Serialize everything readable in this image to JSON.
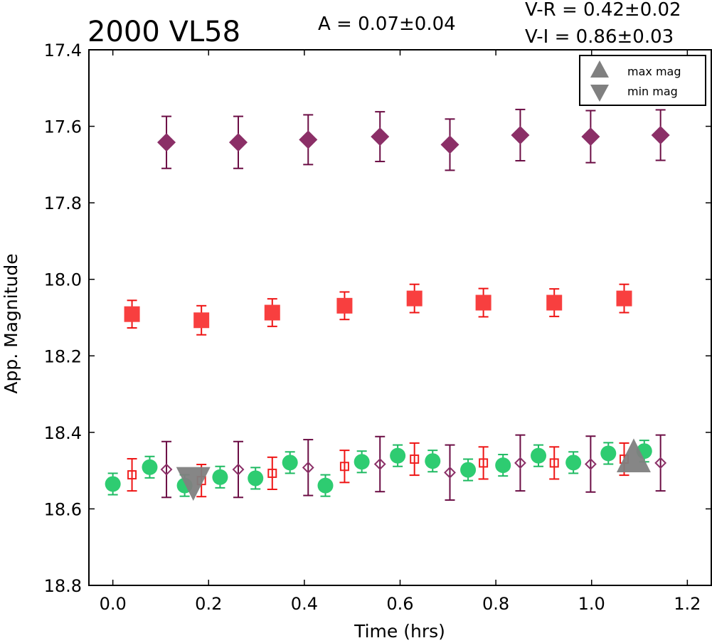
{
  "chart_data": {
    "type": "scatter",
    "title": "2000 VL58",
    "header": {
      "amplitude": "A  = 0.07±0.04",
      "v_r": "V-R = 0.42±0.02",
      "v_i": "V-I  = 0.86±0.03"
    },
    "xlabel": "Time (hrs)",
    "ylabel": "App. Magnitude",
    "xlim": [
      -0.05,
      1.25
    ],
    "ylim": [
      17.4,
      18.8
    ],
    "y_inverted": true,
    "xticks": [
      "0.0",
      "0.2",
      "0.4",
      "0.6",
      "0.8",
      "1.0",
      "1.2"
    ],
    "yticks": [
      "17.4",
      "17.6",
      "17.8",
      "18.0",
      "18.2",
      "18.4",
      "18.6",
      "18.8"
    ],
    "grid": false,
    "legend": {
      "placement": "top-right",
      "entries": [
        {
          "label": "max mag",
          "marker": "triangle-up",
          "color": "#808080"
        },
        {
          "label": "min mag",
          "marker": "triangle-down",
          "color": "#808080"
        }
      ]
    },
    "series": [
      {
        "marker": "diamond-filled",
        "color": "#8b2f67",
        "errcolor": "#6b0d44",
        "x": [
          0.112,
          0.262,
          0.408,
          0.558,
          0.704,
          0.851,
          0.998,
          1.144
        ],
        "y": [
          17.642,
          17.642,
          17.635,
          17.627,
          17.648,
          17.623,
          17.627,
          17.623
        ],
        "err": [
          0.068,
          0.068,
          0.065,
          0.065,
          0.067,
          0.067,
          0.068,
          0.066
        ]
      },
      {
        "marker": "square-filled",
        "color": "#f83f3f",
        "errcolor": "#ee1414",
        "x": [
          0.04,
          0.185,
          0.333,
          0.484,
          0.63,
          0.774,
          0.922,
          1.068
        ],
        "y": [
          18.091,
          18.107,
          18.087,
          18.069,
          18.05,
          18.061,
          18.061,
          18.05
        ],
        "err": [
          0.036,
          0.038,
          0.036,
          0.036,
          0.037,
          0.037,
          0.036,
          0.037
        ]
      },
      {
        "marker": "circle-filled",
        "color": "#2ecc71",
        "errcolor": "#1fba62",
        "x": [
          0.0,
          0.077,
          0.15,
          0.224,
          0.298,
          0.37,
          0.444,
          0.52,
          0.595,
          0.668,
          0.742,
          0.815,
          0.889,
          0.962,
          1.035,
          1.11
        ],
        "y": [
          18.535,
          18.491,
          18.539,
          18.517,
          18.52,
          18.479,
          18.539,
          18.477,
          18.461,
          18.475,
          18.498,
          18.486,
          18.461,
          18.479,
          18.455,
          18.449
        ],
        "err": [
          0.028,
          0.028,
          0.028,
          0.028,
          0.028,
          0.028,
          0.028,
          0.028,
          0.028,
          0.028,
          0.028,
          0.028,
          0.028,
          0.028,
          0.028,
          0.028
        ]
      },
      {
        "marker": "square-open",
        "color": "#f02020",
        "errcolor": "#ee1414",
        "x": [
          0.04,
          0.185,
          0.333,
          0.484,
          0.63,
          0.774,
          0.922,
          1.068
        ],
        "y": [
          18.511,
          18.526,
          18.507,
          18.489,
          18.47,
          18.48,
          18.48,
          18.47
        ],
        "err": [
          0.042,
          0.042,
          0.042,
          0.042,
          0.042,
          0.042,
          0.042,
          0.042
        ]
      },
      {
        "marker": "diamond-open",
        "color": "#8b2f67",
        "errcolor": "#6b0d44",
        "x": [
          0.112,
          0.262,
          0.408,
          0.558,
          0.704,
          0.851,
          0.998,
          1.144
        ],
        "y": [
          18.497,
          18.497,
          18.492,
          18.483,
          18.505,
          18.48,
          18.483,
          18.48
        ],
        "err": [
          0.073,
          0.073,
          0.073,
          0.072,
          0.072,
          0.073,
          0.073,
          0.073
        ]
      }
    ],
    "annotations": [
      {
        "label": "min mag",
        "marker": "triangle-down",
        "x": 0.168,
        "y": 18.527,
        "color": "#808080"
      },
      {
        "label": "max mag",
        "marker": "triangle-up",
        "x": 1.088,
        "y": 18.468,
        "color": "#808080"
      }
    ]
  }
}
